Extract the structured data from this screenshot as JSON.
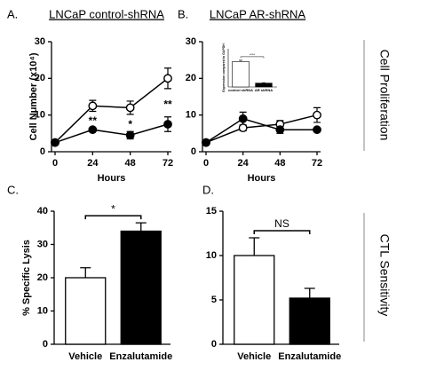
{
  "side_labels": [
    "Cell Proliferation",
    "CTL Sensitivity"
  ],
  "chart_data": [
    {
      "type": "line",
      "panel_label": "A.",
      "title": "LNCaP control-shRNA",
      "xlabel": "Hours",
      "ylabel": "Cell Number (x10⁴)",
      "x": [
        0,
        24,
        48,
        72
      ],
      "xlim": [
        0,
        72
      ],
      "xticks": [
        0,
        24,
        48,
        72
      ],
      "ylim": [
        0,
        30
      ],
      "yticks": [
        0,
        10,
        20,
        30
      ],
      "series": [
        {
          "color": "#000000",
          "fill": "#ffffff",
          "values": [
            2.5,
            12.5,
            12,
            20
          ],
          "errors": [
            0.3,
            1.5,
            1.8,
            2.8
          ]
        },
        {
          "color": "#000000",
          "fill": "#000000",
          "values": [
            2.5,
            6,
            4.5,
            7.5
          ],
          "errors": [
            0.3,
            0.5,
            1,
            2
          ]
        }
      ],
      "annotations": [
        {
          "text": "**",
          "x": 24
        },
        {
          "text": "*",
          "x": 48
        },
        {
          "text": "**",
          "x": 72
        }
      ]
    },
    {
      "type": "line",
      "panel_label": "B.",
      "title": "LNCaP AR-shRNA",
      "xlabel": "Hours",
      "x": [
        0,
        24,
        48,
        72
      ],
      "xlim": [
        0,
        72
      ],
      "xticks": [
        0,
        24,
        48,
        72
      ],
      "ylim": [
        0,
        30
      ],
      "yticks": [
        0,
        10,
        20,
        30
      ],
      "series": [
        {
          "color": "#000000",
          "fill": "#ffffff",
          "values": [
            2.5,
            6.5,
            7.5,
            10
          ],
          "errors": [
            0.3,
            0.8,
            1,
            2
          ]
        },
        {
          "color": "#000000",
          "fill": "#000000",
          "values": [
            2.5,
            9,
            6,
            6
          ],
          "errors": [
            0.3,
            1.8,
            1,
            0.5
          ]
        }
      ]
    },
    {
      "type": "bar",
      "ylabel": "Expression compared to GAPDH",
      "categories": [
        "control shRNA",
        "AR shRNA"
      ],
      "values": [
        1.0,
        0.15
      ],
      "errors": [
        0.05,
        0.02
      ],
      "ylim": [
        0,
        1.5
      ],
      "colors": [
        "#ffffff",
        "#000000"
      ],
      "annotation": "****"
    },
    {
      "type": "bar",
      "panel_label": "C.",
      "ylabel": "% Specific Lysis",
      "categories": [
        "Vehicle",
        "Enzalutamide"
      ],
      "values": [
        20,
        34
      ],
      "errors": [
        3,
        2.5
      ],
      "ylim": [
        0,
        40
      ],
      "yticks": [
        0,
        10,
        20,
        30,
        40
      ],
      "colors": [
        "#ffffff",
        "#000000"
      ],
      "annotation": "*"
    },
    {
      "type": "bar",
      "panel_label": "D.",
      "categories": [
        "Vehicle",
        "Enzalutamide"
      ],
      "values": [
        10,
        5.2
      ],
      "errors": [
        2,
        1.1
      ],
      "ylim": [
        0,
        15
      ],
      "yticks": [
        0,
        5,
        10,
        15
      ],
      "colors": [
        "#ffffff",
        "#000000"
      ],
      "annotation": "NS"
    }
  ]
}
